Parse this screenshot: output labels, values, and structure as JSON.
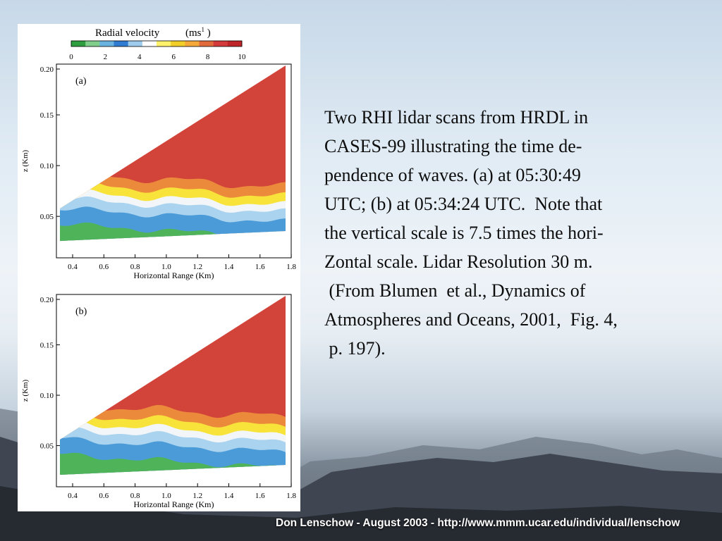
{
  "figure": {
    "colorbar": {
      "title": "Radial velocity",
      "unit": "(ms",
      "unit_sup": "1",
      "unit_close": " )",
      "tick_labels": [
        "0",
        "2",
        "4",
        "6",
        "8",
        "10"
      ],
      "colors": [
        "#2f9e3f",
        "#7fcf8a",
        "#6ab2e0",
        "#2f7cd0",
        "#9ccbee",
        "#ffffff",
        "#fff16a",
        "#f2cf28",
        "#f4a838",
        "#e06a3b",
        "#d43a3a",
        "#bf2528"
      ]
    },
    "panels": [
      {
        "id": "a",
        "label": "(a)",
        "ylabel": "z (Km)",
        "xlabel": "Horizontal Range  (Km)",
        "y_tick_labels": [
          "0.20",
          "0.15",
          "0.10",
          "0.05"
        ],
        "x_tick_labels": [
          "0.4",
          "0.6",
          "0.8",
          "1.0",
          "1.2",
          "1.4",
          "1.6",
          "1.8"
        ]
      },
      {
        "id": "b",
        "label": "(b)",
        "ylabel": "z (Km)",
        "xlabel": "Horizontal Range  (Km)",
        "y_tick_labels": [
          "0.20",
          "0.15",
          "0.10",
          "0.05"
        ],
        "x_tick_labels": [
          "0.4",
          "0.6",
          "0.8",
          "1.0",
          "1.2",
          "1.4",
          "1.6",
          "1.8"
        ]
      }
    ],
    "layer_colors": {
      "red": "#d2443a",
      "orange": "#ec8a3c",
      "yellow": "#f7e33a",
      "white": "#f2f6f9",
      "lightblue": "#a9d3ee",
      "blue": "#4a9bd8",
      "green": "#4fb35a"
    }
  },
  "caption": {
    "lines": [
      "Two RHI lidar scans from HRDL in",
      "CASES-99 illustrating the time de-",
      "pendence of waves. (a) at 05:30:49",
      "UTC; (b) at 05:34:24 UTC.  Note that",
      "the vertical scale is 7.5 times the hori-",
      "Zontal scale. Lidar Resolution 30 m.",
      " (From Blumen  et al., Dynamics of",
      "Atmospheres and Oceans, 2001,  Fig. 4,",
      " p. 197)."
    ]
  },
  "footer": {
    "text": "Don Lenschow - August 2003 - http://www.mmm.ucar.edu/individual/lenschow"
  }
}
